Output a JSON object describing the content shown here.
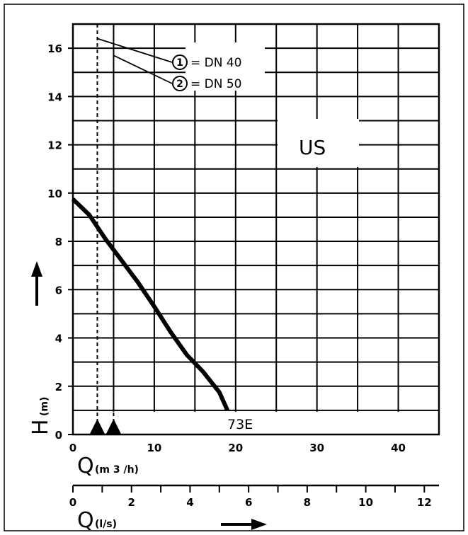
{
  "chart_data": {
    "type": "line",
    "series_label": "US",
    "model_label": "73E",
    "y_axis": {
      "label": "H",
      "unit": "(m)",
      "range": [
        0,
        17
      ],
      "ticks": [
        0,
        2,
        4,
        6,
        8,
        10,
        12,
        14,
        16
      ]
    },
    "x_axis_primary": {
      "label": "Q",
      "unit": "(m 3 /h)",
      "range": [
        0,
        45
      ],
      "ticks": [
        0,
        10,
        20,
        30,
        40
      ]
    },
    "x_axis_secondary": {
      "label": "Q",
      "unit": "(l/s)",
      "range": [
        0,
        12.5
      ],
      "ticks": [
        0,
        2,
        4,
        6,
        8,
        10,
        12
      ]
    },
    "grid": true,
    "curve": {
      "x": [
        0,
        2,
        4,
        6,
        8,
        10,
        12,
        14,
        16,
        18,
        19
      ],
      "y": [
        9.75,
        9.1,
        8.1,
        7.2,
        6.3,
        5.3,
        4.25,
        3.3,
        2.6,
        1.75,
        1.0
      ]
    },
    "legend": [
      {
        "number": "1",
        "text": "= DN 40",
        "x": 3,
        "y": 16.4
      },
      {
        "number": "2",
        "text": "= DN 50",
        "x": 5,
        "y": 15.7
      }
    ],
    "markers": [
      {
        "x": 3
      },
      {
        "x": 5
      }
    ]
  }
}
